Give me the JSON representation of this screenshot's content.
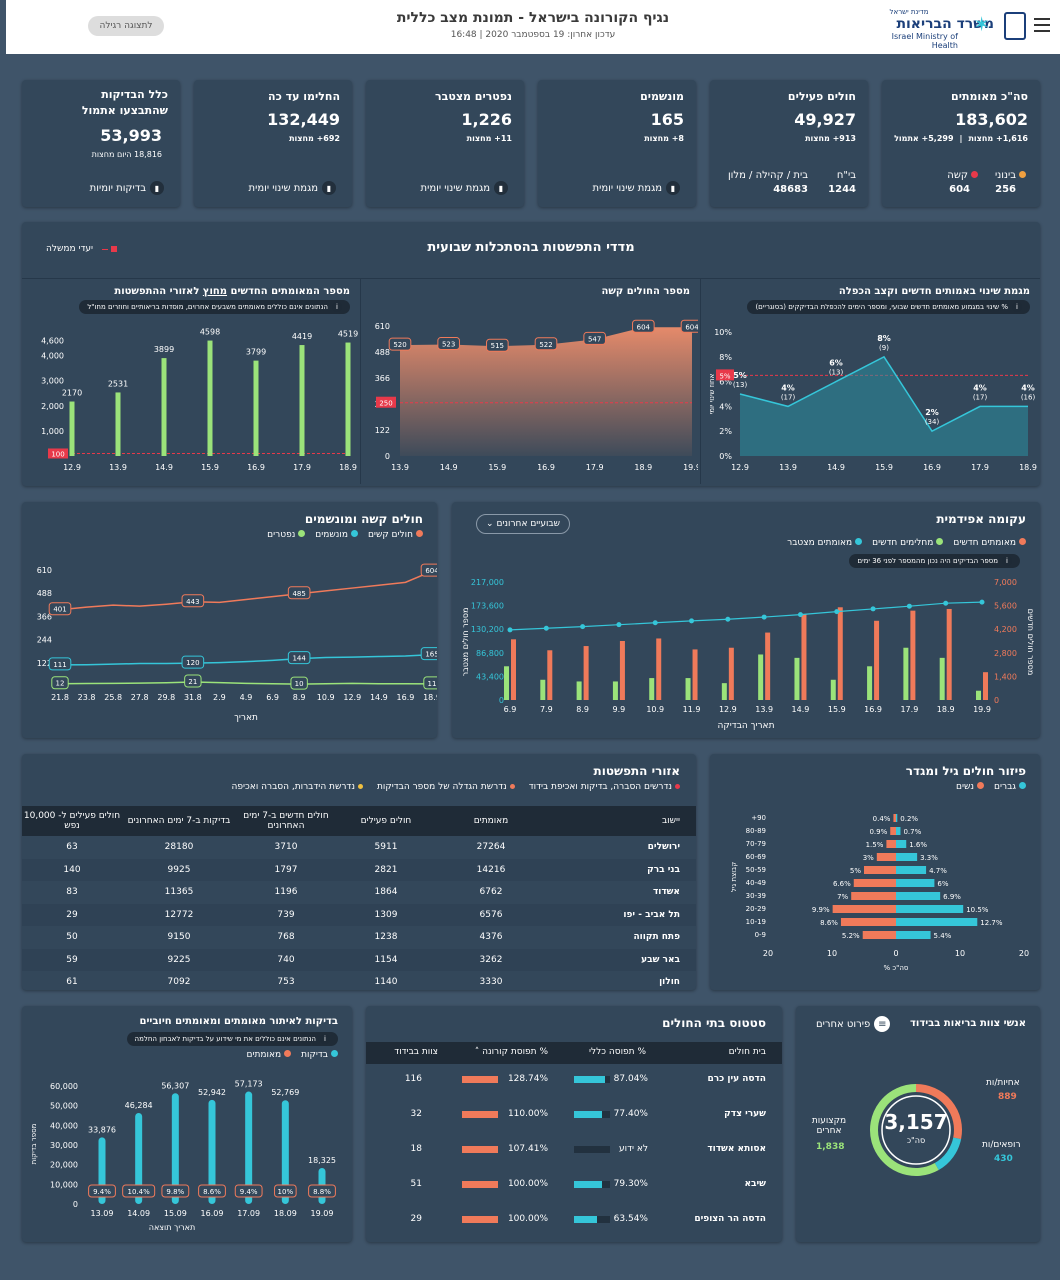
{
  "header": {
    "title": "נגיף הקורונה בישראל - תמונת מצב כללית",
    "updated": "עדכון אחרון: 19 בספטמבר 2020 | 16:48",
    "view_button": "לתצוגה רגילה",
    "logo_small": "מדינת ישראל",
    "logo_main": "משרד הבריאות",
    "logo_en": "Israel Ministry of Health"
  },
  "kpis": {
    "confirmed": {
      "title": "סה\"כ מאומתים",
      "value": "183,602",
      "delta1": "1,616+ מחצות",
      "delta2": "5,299+ אתמול",
      "mild_label": "בינוני",
      "mild": "256",
      "severe_label": "קשה",
      "severe": "604"
    },
    "active": {
      "title": "חולים פעילים",
      "value": "49,927",
      "delta": "913+ מחצות",
      "hosp_label": "בי\"ח",
      "hosp": "1244",
      "home_label": "בית / קהילה / מלון",
      "home": "48683"
    },
    "ventilated": {
      "title": "מונשמים",
      "value": "165",
      "delta": "8+ מחצות",
      "link": "מגמת שינוי יומית"
    },
    "deaths": {
      "title": "נפטרים מצטבר",
      "value": "1,226",
      "delta": "11+ מחצות",
      "link": "מגמת שינוי יומית"
    },
    "recovered": {
      "title": "החלימו עד כה",
      "value": "132,449",
      "delta": "692+ מחצות",
      "link": "מגמת שינוי יומית"
    },
    "tests": {
      "title1": "כלל הבדיקות",
      "title2": "שהתבצעו אתמול",
      "value": "53,993",
      "delta": "18,816 היום מחצות",
      "link": "בדיקות יומיות"
    }
  },
  "weekly": {
    "title": "מדדי התפשטות בהסתכלות שבועית",
    "legend": "יעדי ממשלה",
    "chart1": {
      "title": "מגמת שינוי באמותים חדשים וקצב הכפלה",
      "note": "% שינוי במגמוע מאומתים חדשים שבועי, ומספר הימים להכפלת הבדיקקים (בסוגריים)",
      "yticks": [
        "10%",
        "8%",
        "6%",
        "4%",
        "2%",
        "0%"
      ],
      "ylabel": "אחוז שינוי יומי",
      "goal": "5%",
      "x": [
        "12.9",
        "13.9",
        "14.9",
        "15.9",
        "16.9",
        "17.9",
        "18.9"
      ],
      "values": [
        5,
        4,
        6,
        8,
        2,
        4,
        4
      ],
      "labels": [
        "5%",
        "4%",
        "6%",
        "8%",
        "2%",
        "4%",
        "4%"
      ],
      "doubling": [
        "(13)",
        "(17)",
        "(13)",
        "(9)",
        "(34)",
        "(17)",
        "(16)"
      ]
    },
    "chart2": {
      "title": "מספר החולים קשה",
      "yticks": [
        "610",
        "488",
        "366",
        "244",
        "122",
        "0"
      ],
      "goal": "250",
      "x": [
        "13.9",
        "14.9",
        "15.9",
        "16.9",
        "17.9",
        "18.9",
        "19.9"
      ],
      "values": [
        520,
        523,
        515,
        522,
        547,
        604,
        604
      ]
    },
    "chart3": {
      "title_a": "מספר המאומתים החדשים",
      "title_b": "מחוץ",
      "title_c": "לאזורי ההתפשטות",
      "note": "הנתונים אינם כוללים מאומתים משבעים אחרוים, מוסדות בריאותיים וחוזרים מחו\"ל",
      "yticks": [
        "4,600",
        "4,000",
        "3,000",
        "2,000",
        "1,000"
      ],
      "goal": "100",
      "x": [
        "12.9",
        "13.9",
        "14.9",
        "15.9",
        "16.9",
        "17.9",
        "18.9"
      ],
      "values": [
        2170,
        2531,
        3899,
        4598,
        3799,
        4419,
        4519
      ]
    }
  },
  "epi": {
    "title": "עקומה אפידמית",
    "range": "שבועיים אחרונים",
    "legend": [
      "מאומתים חדשים",
      "מחלימים חדשים",
      "מאומתים מצטבר"
    ],
    "note": "מספר הבדיקים היה נכון מהמספר לפני 36 ימים",
    "yleft": [
      "217,000",
      "173,600",
      "130,200",
      "86,800",
      "43,400",
      "0"
    ],
    "yright": [
      "7,000",
      "5,600",
      "4,200",
      "2,800",
      "1,400",
      "0"
    ],
    "ylabel_left": "מספר חולים מצטבר",
    "ylabel_right": "מספר חולים חדשים",
    "xlabel": "תאריך הבדיקה",
    "x": [
      "6.9",
      "7.9",
      "8.9",
      "9.9",
      "10.9",
      "11.9",
      "12.9",
      "13.9",
      "14.9",
      "15.9",
      "16.9",
      "17.9",
      "18.9",
      "19.9"
    ],
    "new_cases": [
      3600,
      2950,
      3200,
      3500,
      3650,
      3000,
      3100,
      4000,
      5100,
      5500,
      4700,
      5300,
      5400,
      1650
    ],
    "recovered": [
      2000,
      1200,
      1100,
      1100,
      1300,
      1300,
      1000,
      2700,
      2500,
      1200,
      2000,
      3100,
      2500,
      550
    ],
    "cumulative": [
      129000,
      132000,
      135000,
      138500,
      142000,
      145500,
      148500,
      152500,
      157000,
      162500,
      167500,
      172500,
      178000,
      180000
    ]
  },
  "severe": {
    "title": "חולים קשה ומונשמים",
    "legend": [
      "חולים קשים",
      "מונשמים",
      "נפטרים"
    ],
    "yticks": [
      "610",
      "488",
      "366",
      "244",
      "122"
    ],
    "xlabel": "תאריך",
    "x": [
      "21.8",
      "23.8",
      "25.8",
      "27.8",
      "29.8",
      "31.8",
      "2.9",
      "4.9",
      "6.9",
      "8.9",
      "10.9",
      "12.9",
      "14.9",
      "16.9",
      "18.9"
    ],
    "severe": [
      401,
      415,
      425,
      420,
      430,
      443,
      440,
      455,
      470,
      485,
      500,
      515,
      530,
      545,
      604
    ],
    "vent": [
      111,
      112,
      115,
      118,
      118,
      120,
      123,
      128,
      135,
      144,
      150,
      152,
      155,
      158,
      165
    ],
    "deaths": [
      12,
      13,
      14,
      15,
      17,
      21,
      18,
      14,
      12,
      10,
      12,
      14,
      12,
      12,
      11
    ],
    "labels_idx": [
      0,
      5,
      9,
      14
    ]
  },
  "spread": {
    "title": "אזורי התפשטות",
    "legend": [
      "נדרשים הסברה, בדיקות ואכיפת בידוד",
      "נדרשת הגדלה של מספר הבדיקות",
      "נדרשת הידברות, הסברה ואכיפה"
    ],
    "headers": [
      "יישוב",
      "מאומתים",
      "חולים פעילים",
      "חולים חדשים ב-7 ימים האחרונים",
      "בדיקות ב-7 ימים האחרונים",
      "חולים פעילים ל- 10,000 נפש"
    ],
    "rows": [
      [
        "ירושלים",
        "27264",
        "5911",
        "3710",
        "28180",
        "63"
      ],
      [
        "בני ברק",
        "14216",
        "2821",
        "1797",
        "9925",
        "140"
      ],
      [
        "אשדוד",
        "6762",
        "1864",
        "1196",
        "11365",
        "83"
      ],
      [
        "תל אביב - יפו",
        "6576",
        "1309",
        "739",
        "12772",
        "29"
      ],
      [
        "פתח תקווה",
        "4376",
        "1238",
        "768",
        "9150",
        "50"
      ],
      [
        "באר שבע",
        "3262",
        "1154",
        "740",
        "9225",
        "59"
      ],
      [
        "חולון",
        "3330",
        "1140",
        "753",
        "7092",
        "61"
      ]
    ]
  },
  "age": {
    "title": "פיזור חולים גיל ומגדר",
    "legend": [
      "גברים",
      "נשים"
    ],
    "groups": [
      "+90",
      "80-89",
      "70-79",
      "60-69",
      "50-59",
      "40-49",
      "30-39",
      "20-29",
      "10-19",
      "0-9"
    ],
    "women": [
      0.4,
      0.9,
      1.5,
      3,
      5,
      6.6,
      7,
      9.9,
      8.6,
      5.2
    ],
    "men": [
      0.2,
      0.7,
      1.6,
      3.3,
      4.7,
      6,
      6.9,
      10.5,
      12.7,
      5.4
    ],
    "xticks": [
      "20",
      "10",
      "0",
      "10",
      "20"
    ],
    "xlabel": "% סה\"כ",
    "ylabel": "קבוצת גיל"
  },
  "tests": {
    "title": "בדיקות לאיתור מאומתים ומאומתים חיוביים",
    "note": "הנתונים אינם כוללים את מי שידוע על בדיקות לאבחון החלמה",
    "legend": [
      "בדיקות",
      "מאומתים"
    ],
    "yticks": [
      "60,000",
      "50,000",
      "40,000",
      "30,000",
      "20,000",
      "10,000",
      "0"
    ],
    "ylabel": "מספר בדיקות",
    "xlabel": "תאריך תוצאה",
    "x": [
      "13.09",
      "14.09",
      "15.09",
      "16.09",
      "17.09",
      "18.09",
      "19.09"
    ],
    "values": [
      33876,
      46284,
      56307,
      52942,
      57173,
      52769,
      18325
    ],
    "labels": [
      "33,876",
      "46,284",
      "56,307",
      "52,942",
      "57,173",
      "52,769",
      "18,325"
    ],
    "pos": [
      "9.4%",
      "10.4%",
      "9.8%",
      "8.6%",
      "9.4%",
      "10%",
      "8.8%"
    ]
  },
  "hospitals": {
    "title": "סטטוס בתי החולים",
    "headers": [
      "בית חולים",
      "% תפוסה כללי",
      "% תפוסת קורונה",
      "צוות בבידוד"
    ],
    "rows": [
      {
        "name": "הדסה עין כרם",
        "gen": "87.04%",
        "genv": 87,
        "cov": "128.74%",
        "covv": 100,
        "staff": "116"
      },
      {
        "name": "שערי צדק",
        "gen": "77.40%",
        "genv": 77,
        "cov": "110.00%",
        "covv": 100,
        "staff": "32"
      },
      {
        "name": "אסותא אשדוד",
        "gen": "לא ידוע",
        "genv": 0,
        "cov": "107.41%",
        "covv": 100,
        "staff": "18"
      },
      {
        "name": "שיבא",
        "gen": "79.30%",
        "genv": 79,
        "cov": "100.00%",
        "covv": 100,
        "staff": "51"
      },
      {
        "name": "הדסה הר הצופים",
        "gen": "63.54%",
        "genv": 64,
        "cov": "100.00%",
        "covv": 100,
        "staff": "29"
      }
    ]
  },
  "staff": {
    "title": "אנשי צוות בריאות בבידוד",
    "detail": "פירוט אחרים",
    "total": "3,157",
    "total_label": "סה\"כ",
    "nurses_label": "אחיות/ות",
    "nurses": "889",
    "doctors_label": "רופאים/ות",
    "doctors": "430",
    "others_label": "מקצועות אחרים",
    "others": "1,838",
    "colors": {
      "nurses": "#f07a5a",
      "doctors": "#35c6d9",
      "others": "#9be37a"
    }
  },
  "colors": {
    "orange": "#f07a5a",
    "cyan": "#35c6d9",
    "green": "#9be37a",
    "red": "#e8394a"
  }
}
